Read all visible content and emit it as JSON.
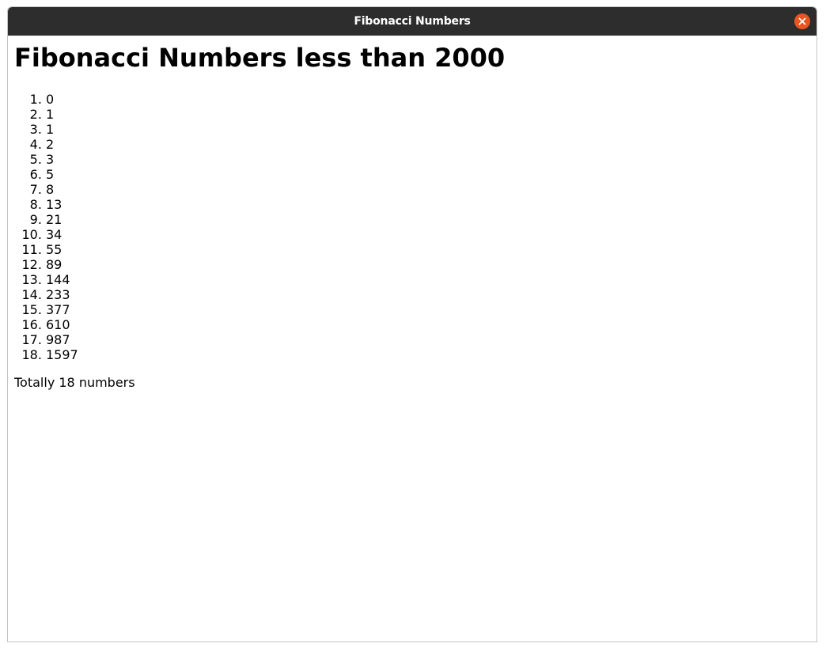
{
  "window": {
    "title": "Fibonacci Numbers"
  },
  "page": {
    "heading": "Fibonacci Numbers less than 2000",
    "numbers": [
      "0",
      "1",
      "1",
      "2",
      "3",
      "5",
      "8",
      "13",
      "21",
      "34",
      "55",
      "89",
      "144",
      "233",
      "377",
      "610",
      "987",
      "1597"
    ],
    "summary": "Totally 18 numbers"
  },
  "colors": {
    "titlebar": "#2e2d2e",
    "close_button": "#e95420"
  },
  "icons": {
    "close": "close-icon"
  }
}
